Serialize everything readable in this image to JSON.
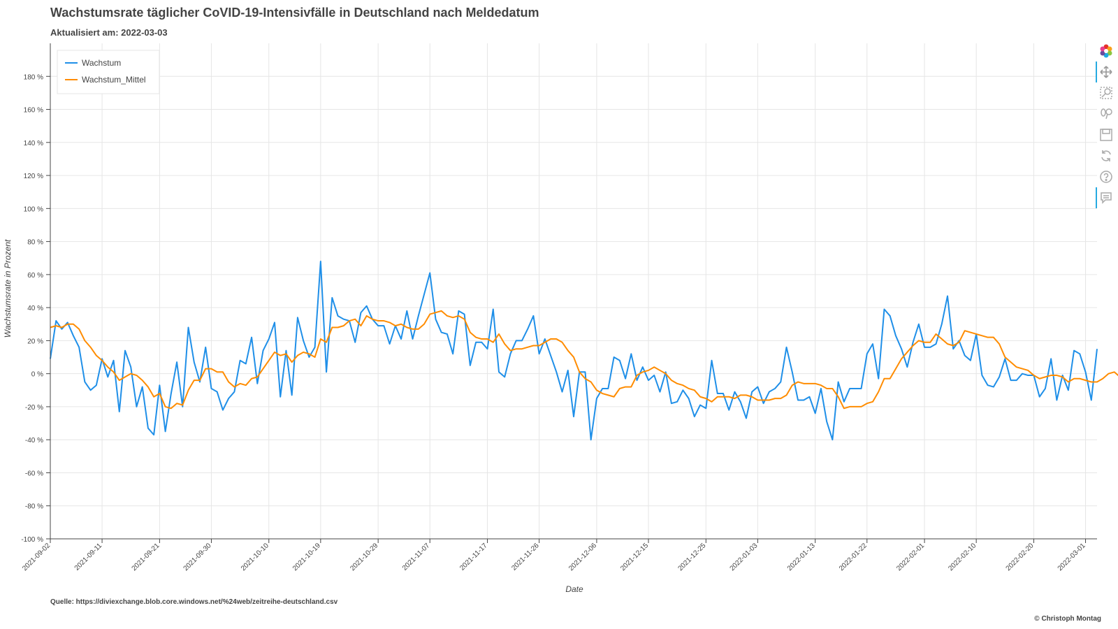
{
  "header": {
    "title": "Wachstumsrate täglicher CoVID-19-Intensivfälle in Deutschland nach Meldedatum",
    "subtitle": "Aktualisiert am: 2022-03-03"
  },
  "footer": {
    "source": "Quelle: https://diviexchange.blob.core.windows.net/%24web/zeitreihe-deutschland.csv",
    "copyright": "© Christoph Montag"
  },
  "toolbar": {
    "tools": [
      "bokeh-logo-icon",
      "pan-icon",
      "box-zoom-icon",
      "wheel-zoom-icon",
      "save-icon",
      "reset-icon",
      "help-icon",
      "hover-icon"
    ]
  },
  "colors": {
    "wachstum": "#1f8fe8",
    "mittel": "#ff8c00",
    "grid": "#e6e6e6",
    "axis": "#444444"
  },
  "chart_data": {
    "type": "line",
    "xlabel": "Date",
    "ylabel": "Wachstumsrate in Prozent",
    "x_start": "2021-09-02",
    "x_end": "2022-03-03",
    "ylim": [
      -100,
      200
    ],
    "ytick_step": 20,
    "ytick_suffix": " %",
    "grid": true,
    "legend_position": "top-left",
    "x_ticks": [
      "2021-09-02",
      "2021-09-11",
      "2021-09-21",
      "2021-09-30",
      "2021-10-10",
      "2021-10-19",
      "2021-10-29",
      "2021-11-07",
      "2021-11-17",
      "2021-11-26",
      "2021-12-06",
      "2021-12-15",
      "2021-12-25",
      "2022-01-03",
      "2022-01-13",
      "2022-01-22",
      "2022-02-01",
      "2022-02-10",
      "2022-02-20",
      "2022-03-01"
    ],
    "series": [
      {
        "name": "Wachstum",
        "color": "#1f8fe8",
        "values": [
          9,
          32,
          27,
          31,
          23,
          16,
          -5,
          -10,
          -7,
          9,
          -2,
          8,
          -23,
          14,
          4,
          -20,
          -8,
          -33,
          -37,
          -7,
          -35,
          -12,
          7,
          -20,
          28,
          7,
          -5,
          16,
          -9,
          -11,
          -22,
          -15,
          -11,
          8,
          6,
          22,
          -6,
          14,
          21,
          31,
          -14,
          14,
          -13,
          34,
          20,
          10,
          16,
          68,
          1,
          46,
          35,
          33,
          32,
          19,
          37,
          41,
          33,
          29,
          29,
          18,
          29,
          21,
          38,
          21,
          35,
          48,
          61,
          33,
          25,
          24,
          12,
          38,
          36,
          5,
          19,
          19,
          15,
          39,
          1,
          -2,
          12,
          20,
          20,
          27,
          35,
          12,
          21,
          11,
          1,
          -11,
          2,
          -26,
          1,
          1,
          -40,
          -15,
          -9,
          -9,
          10,
          8,
          -3,
          12,
          -4,
          4,
          -4,
          -1,
          -11,
          1,
          -18,
          -17,
          -10,
          -15,
          -26,
          -19,
          -21,
          8,
          -12,
          -12,
          -22,
          -11,
          -17,
          -27,
          -11,
          -8,
          -18,
          -11,
          -9,
          -5,
          16,
          1,
          -16,
          -16,
          -14,
          -24,
          -9,
          -29,
          -40,
          -5,
          -17,
          -9,
          -9,
          -9,
          12,
          18,
          -3,
          39,
          35,
          23,
          15,
          4,
          19,
          30,
          16,
          16,
          18,
          30,
          47,
          15,
          20,
          11,
          8,
          24,
          -1,
          -7,
          -8,
          -2,
          9,
          -4,
          -4,
          0,
          -1,
          -1,
          -14,
          -9,
          9,
          -16,
          -1,
          -10,
          14,
          12,
          1,
          -16,
          15
        ]
      },
      {
        "name": "Wachstum_Mittel",
        "color": "#ff8c00",
        "values": [
          28,
          29,
          28,
          30,
          30,
          27,
          20,
          16,
          11,
          8,
          4,
          1,
          -4,
          -2,
          0,
          -1,
          -4,
          -8,
          -14,
          -12,
          -20,
          -21,
          -18,
          -19,
          -10,
          -4,
          -4,
          3,
          3,
          1,
          1,
          -5,
          -8,
          -6,
          -7,
          -3,
          -2,
          3,
          8,
          13,
          11,
          12,
          7,
          11,
          13,
          12,
          10,
          21,
          19,
          28,
          28,
          29,
          32,
          33,
          29,
          35,
          33,
          32,
          32,
          31,
          29,
          30,
          28,
          27,
          27,
          30,
          36,
          37,
          38,
          35,
          34,
          35,
          33,
          25,
          22,
          21,
          21,
          19,
          24,
          18,
          14,
          15,
          15,
          16,
          17,
          17,
          19,
          21,
          21,
          19,
          14,
          10,
          1,
          -3,
          -5,
          -10,
          -12,
          -13,
          -14,
          -9,
          -8,
          -8,
          -1,
          1,
          2,
          4,
          2,
          0,
          -4,
          -6,
          -7,
          -9,
          -10,
          -14,
          -15,
          -17,
          -14,
          -14,
          -14,
          -15,
          -13,
          -13,
          -14,
          -16,
          -16,
          -16,
          -15,
          -15,
          -13,
          -7,
          -5,
          -6,
          -6,
          -6,
          -7,
          -9,
          -9,
          -14,
          -21,
          -20,
          -20,
          -20,
          -18,
          -17,
          -11,
          -3,
          -3,
          3,
          9,
          13,
          17,
          20,
          19,
          19,
          24,
          21,
          18,
          17,
          19,
          26,
          25,
          24,
          23,
          22,
          22,
          18,
          10,
          7,
          4,
          3,
          2,
          -1,
          -3,
          -2,
          -1,
          -1,
          -2,
          -5,
          -3,
          -3,
          -4,
          -5,
          -5,
          -3,
          0,
          1,
          -2,
          2
        ]
      }
    ]
  }
}
